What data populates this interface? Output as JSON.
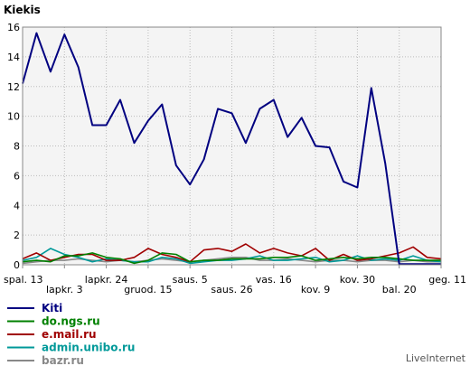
{
  "chart_data": {
    "type": "line",
    "title": "Kiekis",
    "ylim": [
      0,
      16
    ],
    "yticks": [
      0,
      2,
      4,
      6,
      8,
      10,
      12,
      14,
      16
    ],
    "grid": true,
    "legend_position": "bottom-left",
    "x_labels_upper": [
      "spal. 13",
      "lapkr. 24",
      "saus. 5",
      "vas. 16",
      "kov. 30",
      "geg. 11"
    ],
    "x_labels_lower": [
      "lapkr. 3",
      "gruod. 15",
      "saus. 26",
      "kov. 9",
      "bal. 20"
    ],
    "series": [
      {
        "name": "Kiti",
        "color": "#000080",
        "values": [
          12.2,
          15.6,
          13.0,
          15.5,
          13.3,
          9.4,
          9.4,
          11.1,
          8.2,
          9.7,
          10.8,
          6.7,
          5.4,
          7.1,
          10.5,
          10.2,
          8.2,
          10.5,
          11.1,
          8.6,
          9.9,
          8.0,
          7.9,
          5.6,
          5.2,
          11.9,
          6.8,
          0.05,
          0.05,
          0.05,
          0.05
        ]
      },
      {
        "name": "do.ngs.ru",
        "color": "#008000",
        "values": [
          0.2,
          0.3,
          0.2,
          0.6,
          0.6,
          0.8,
          0.5,
          0.4,
          0.1,
          0.3,
          0.8,
          0.7,
          0.2,
          0.3,
          0.3,
          0.4,
          0.4,
          0.4,
          0.5,
          0.5,
          0.6,
          0.3,
          0.4,
          0.5,
          0.4,
          0.5,
          0.5,
          0.4,
          0.3,
          0.3,
          0.3
        ]
      },
      {
        "name": "e.mail.ru",
        "color": "#a00000",
        "values": [
          0.4,
          0.8,
          0.3,
          0.5,
          0.7,
          0.7,
          0.3,
          0.3,
          0.5,
          1.1,
          0.7,
          0.5,
          0.2,
          1.0,
          1.1,
          0.9,
          1.4,
          0.8,
          1.1,
          0.8,
          0.6,
          1.1,
          0.3,
          0.7,
          0.3,
          0.4,
          0.6,
          0.8,
          1.2,
          0.5,
          0.4
        ]
      },
      {
        "name": "admin.unibo.ru",
        "color": "#009999",
        "values": [
          0.3,
          0.5,
          1.1,
          0.7,
          0.5,
          0.2,
          0.4,
          0.3,
          0.2,
          0.2,
          0.5,
          0.4,
          0.1,
          0.2,
          0.3,
          0.3,
          0.4,
          0.6,
          0.3,
          0.3,
          0.4,
          0.5,
          0.2,
          0.3,
          0.6,
          0.3,
          0.4,
          0.3,
          0.6,
          0.3,
          0.2
        ]
      },
      {
        "name": "bazr.ru",
        "color": "#888888",
        "values": [
          0.1,
          0.2,
          0.3,
          0.3,
          0.4,
          0.3,
          0.2,
          0.3,
          0.2,
          0.3,
          0.4,
          0.3,
          0.2,
          0.3,
          0.4,
          0.5,
          0.5,
          0.3,
          0.3,
          0.4,
          0.3,
          0.2,
          0.3,
          0.3,
          0.2,
          0.3,
          0.3,
          0.2,
          0.3,
          0.2,
          0.2
        ]
      }
    ]
  },
  "footer": {
    "brand": "LiveInternet"
  }
}
